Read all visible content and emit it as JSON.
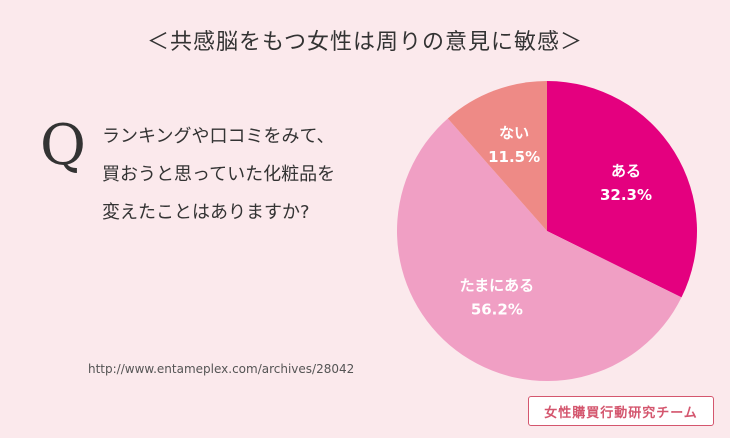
{
  "title": "＜共感脳をもつ女性は周りの意見に敏感＞",
  "question": {
    "mark": "Q",
    "lines": [
      "ランキングや口コミをみて、",
      "買おうと思っていた化粧品を",
      "変えたことはありますか?"
    ]
  },
  "source": "http://www.entameplex.com/archives/28042",
  "team_logo": "女性購買行動研究チーム",
  "chart_data": {
    "type": "pie",
    "title": "",
    "slices": [
      {
        "label": "ある",
        "value": 32.3,
        "value_label": "32.3%",
        "color": "#e4007f"
      },
      {
        "label": "たまにある",
        "value": 56.2,
        "value_label": "56.2%",
        "color": "#f09fc4"
      },
      {
        "label": "ない",
        "value": 11.5,
        "value_label": "11.5%",
        "color": "#ee8a86"
      }
    ],
    "start": "12 o'clock",
    "direction": "clockwise"
  }
}
